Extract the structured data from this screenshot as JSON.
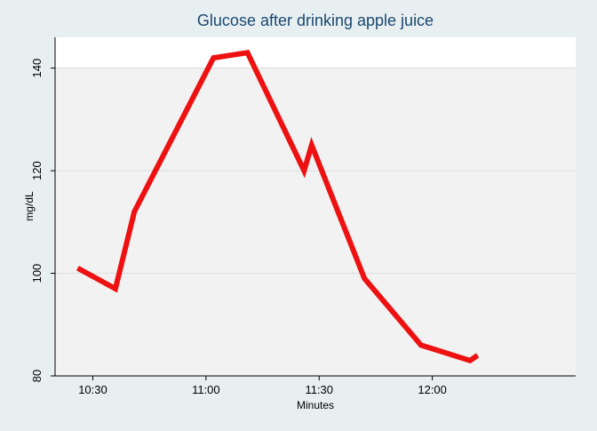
{
  "chart_data": {
    "type": "line",
    "title": "Glucose after drinking apple juice",
    "xlabel": "Minutes",
    "ylabel": "mg/dL",
    "x_tick_labels": [
      "10:30",
      "11:00",
      "11:30",
      "12:00"
    ],
    "x_tick_values": [
      "10:30",
      "11:00",
      "11:30",
      "12:00"
    ],
    "y_ticks": [
      80,
      100,
      120,
      140
    ],
    "xlim": [
      "10:20",
      "12:38"
    ],
    "ylim": [
      80,
      146
    ],
    "grid": true,
    "shaded_band": [
      80,
      140
    ],
    "series": [
      {
        "color": "#ee1111",
        "x": [
          "10:26",
          "10:36",
          "10:41",
          "11:02",
          "11:11",
          "11:26",
          "11:28",
          "11:42",
          "11:57",
          "12:10",
          "12:12"
        ],
        "y": [
          101,
          97,
          112,
          142,
          143,
          120,
          125,
          99,
          86,
          83,
          84
        ]
      }
    ]
  }
}
